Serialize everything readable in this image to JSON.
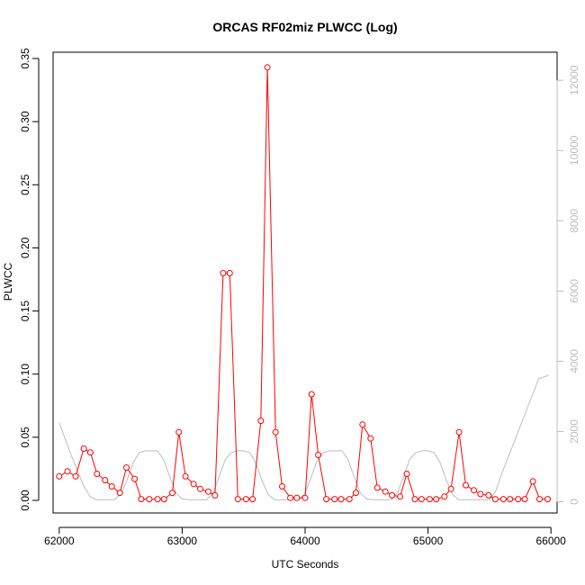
{
  "chart_data": {
    "type": "line",
    "title": "ORCAS RF02miz PLWCC (Log)",
    "xlabel": "UTC Seconds",
    "ylabel": "PLWCC",
    "xlim": [
      61950,
      66050
    ],
    "ylim": [
      -0.01,
      0.355
    ],
    "y2lim": [
      -320,
      12800
    ],
    "x_ticks": [
      62000,
      63000,
      64000,
      65000,
      66000
    ],
    "x_tick_labels": [
      "62000",
      "63000",
      "64000",
      "65000",
      "66000"
    ],
    "y_ticks": [
      0.0,
      0.05,
      0.1,
      0.15,
      0.2,
      0.25,
      0.3,
      0.35
    ],
    "y_tick_labels": [
      "0.00",
      "0.05",
      "0.10",
      "0.15",
      "0.20",
      "0.25",
      "0.30",
      "0.35"
    ],
    "y2_ticks": [
      0,
      2000,
      4000,
      6000,
      8000,
      10000,
      12000
    ],
    "y2_tick_labels": [
      "0",
      "2000",
      "4000",
      "6000",
      "8000",
      "10000",
      "12000"
    ],
    "grid": false,
    "colors": {
      "primary": "#ff0000",
      "secondary": "#bdbdbd",
      "axis": "#000000"
    },
    "series": [
      {
        "axis": "left",
        "style": "line+open-circles",
        "color": "#ff0000",
        "x": [
          62000,
          62067,
          62133,
          62200,
          62253,
          62307,
          62373,
          62427,
          62493,
          62547,
          62613,
          62667,
          62733,
          62800,
          62853,
          62920,
          62973,
          63027,
          63093,
          63147,
          63213,
          63267,
          63333,
          63387,
          63453,
          63520,
          63573,
          63640,
          63693,
          63760,
          63813,
          63880,
          63933,
          64000,
          64053,
          64107,
          64173,
          64240,
          64293,
          64360,
          64413,
          64467,
          64533,
          64587,
          64653,
          64707,
          64773,
          64827,
          64893,
          64947,
          65013,
          65067,
          65133,
          65187,
          65253,
          65307,
          65373,
          65427,
          65493,
          65547,
          65613,
          65667,
          65733,
          65787,
          65853,
          65907,
          65973
        ],
        "values": [
          0.019,
          0.023,
          0.019,
          0.041,
          0.038,
          0.021,
          0.016,
          0.011,
          0.006,
          0.026,
          0.017,
          0.001,
          0.001,
          0.001,
          0.001,
          0.006,
          0.054,
          0.019,
          0.013,
          0.009,
          0.007,
          0.004,
          0.18,
          0.18,
          0.001,
          0.001,
          0.001,
          0.063,
          0.343,
          0.054,
          0.011,
          0.002,
          0.002,
          0.002,
          0.084,
          0.036,
          0.001,
          0.001,
          0.001,
          0.001,
          0.006,
          0.06,
          0.049,
          0.01,
          0.007,
          0.004,
          0.003,
          0.021,
          0.001,
          0.001,
          0.001,
          0.001,
          0.003,
          0.009,
          0.054,
          0.012,
          0.008,
          0.005,
          0.004,
          0.001,
          0.001,
          0.001,
          0.001,
          0.001,
          0.015,
          0.001,
          0.001
        ]
      },
      {
        "axis": "right",
        "style": "line",
        "color": "#bdbdbd",
        "x": [
          62000,
          62100,
          62200,
          62250,
          62300,
          62350,
          62400,
          62450,
          62500,
          62550,
          62600,
          62650,
          62700,
          62750,
          62800,
          62850,
          62900,
          62950,
          63000,
          63050,
          63100,
          63150,
          63200,
          63250,
          63300,
          63350,
          63400,
          63450,
          63500,
          63550,
          63600,
          63650,
          63700,
          63750,
          63800,
          63850,
          63900,
          63950,
          64000,
          64050,
          64100,
          64150,
          64200,
          64250,
          64300,
          64350,
          64400,
          64450,
          64500,
          64550,
          64600,
          64650,
          64700,
          64750,
          64800,
          64850,
          64900,
          64950,
          65000,
          65050,
          65100,
          65150,
          65200,
          65250,
          65300,
          65350,
          65400,
          65450,
          65500,
          65550,
          65600,
          65700,
          65800,
          65900,
          65980
        ],
        "values": [
          2250,
          1300,
          450,
          150,
          60,
          60,
          60,
          60,
          220,
          600,
          1100,
          1400,
          1450,
          1450,
          1450,
          1200,
          700,
          250,
          80,
          60,
          60,
          60,
          60,
          250,
          700,
          1200,
          1400,
          1450,
          1450,
          1400,
          1100,
          600,
          200,
          60,
          60,
          60,
          60,
          60,
          250,
          700,
          1200,
          1400,
          1450,
          1450,
          1450,
          1200,
          700,
          250,
          80,
          60,
          60,
          60,
          60,
          250,
          700,
          1200,
          1400,
          1450,
          1450,
          1400,
          1100,
          600,
          200,
          60,
          60,
          60,
          60,
          60,
          60,
          300,
          800,
          1700,
          2600,
          3500,
          3600
        ]
      }
    ]
  }
}
